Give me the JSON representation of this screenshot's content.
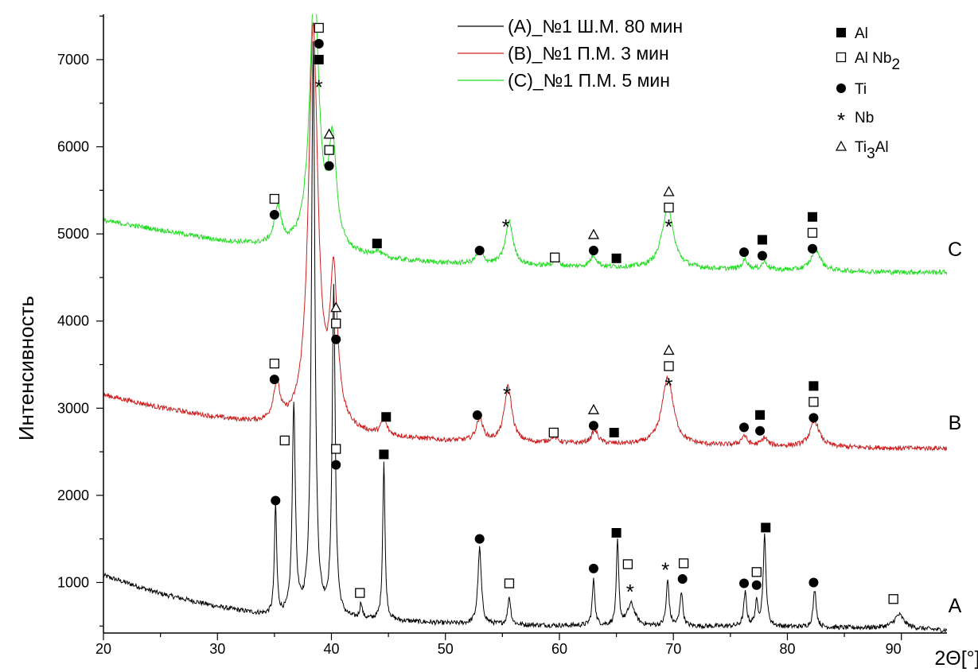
{
  "chart_data": {
    "type": "line",
    "xlabel": "2Θ[°]",
    "ylabel": "Интенсивность",
    "xlim": [
      20,
      94
    ],
    "ylim": [
      420,
      7520
    ],
    "x_ticks": [
      20,
      30,
      40,
      50,
      60,
      70,
      80,
      90
    ],
    "y_ticks": [
      1000,
      2000,
      3000,
      4000,
      5000,
      6000,
      7000
    ],
    "colors": {
      "A": "#000000",
      "B": "#cc1f1f",
      "C": "#22dd22"
    },
    "legend": {
      "placement": "top-center",
      "entries": [
        {
          "id": "C_A",
          "label": "(A)_№1 Ш.М. 80 мин",
          "color": "#000000"
        },
        {
          "id": "C_B",
          "label": "(B)_№1 П.М. 3 мин",
          "color": "#cc1f1f"
        },
        {
          "id": "C_C",
          "label": "(C)_№1 П.М. 5 мин",
          "color": "#22dd22"
        }
      ]
    },
    "phase_legend": {
      "placement": "top-right",
      "entries": [
        {
          "marker": "filled-square",
          "label": "Al"
        },
        {
          "marker": "open-square",
          "label": "Al Nb",
          "sub": "2"
        },
        {
          "marker": "filled-circle",
          "label": "Ti"
        },
        {
          "marker": "asterisk",
          "label": "Nb"
        },
        {
          "marker": "open-triangle",
          "label": "Ti",
          "sub": "3",
          "tail": "Al"
        }
      ]
    },
    "series": [
      {
        "name": "A",
        "end_label": "A",
        "color": "#000000",
        "baseline": [
          [
            20,
            1080
          ],
          [
            25,
            870
          ],
          [
            30,
            720
          ],
          [
            35,
            600
          ],
          [
            40,
            570
          ],
          [
            45,
            560
          ],
          [
            50,
            530
          ],
          [
            55,
            515
          ],
          [
            60,
            505
          ],
          [
            65,
            500
          ],
          [
            70,
            495
          ],
          [
            75,
            495
          ],
          [
            80,
            490
          ],
          [
            85,
            480
          ],
          [
            90,
            480
          ],
          [
            94,
            450
          ]
        ],
        "peaks": [
          {
            "x": 35.1,
            "h": 1280,
            "w": 0.12
          },
          {
            "x": 36.7,
            "h": 2420,
            "w": 0.16
          },
          {
            "x": 38.4,
            "h": 6600,
            "w": 0.18
          },
          {
            "x": 40.2,
            "h": 3760,
            "w": 0.16
          },
          {
            "x": 42.6,
            "h": 180,
            "w": 0.12
          },
          {
            "x": 44.6,
            "h": 1820,
            "w": 0.12
          },
          {
            "x": 53.0,
            "h": 870,
            "w": 0.18
          },
          {
            "x": 55.6,
            "h": 320,
            "w": 0.15
          },
          {
            "x": 63.0,
            "h": 520,
            "w": 0.14
          },
          {
            "x": 65.1,
            "h": 970,
            "w": 0.12
          },
          {
            "x": 66.3,
            "h": 250,
            "w": 0.4
          },
          {
            "x": 69.5,
            "h": 520,
            "w": 0.15
          },
          {
            "x": 70.7,
            "h": 400,
            "w": 0.15
          },
          {
            "x": 76.3,
            "h": 380,
            "w": 0.15
          },
          {
            "x": 77.3,
            "h": 260,
            "w": 0.15
          },
          {
            "x": 78.0,
            "h": 1030,
            "w": 0.15
          },
          {
            "x": 82.4,
            "h": 430,
            "w": 0.16
          },
          {
            "x": 89.8,
            "h": 150,
            "w": 0.5
          }
        ]
      },
      {
        "name": "B",
        "end_label": "B",
        "color": "#cc1f1f",
        "baseline": [
          [
            20,
            3150
          ],
          [
            25,
            3000
          ],
          [
            30,
            2880
          ],
          [
            35,
            2780
          ],
          [
            40,
            2700
          ],
          [
            45,
            2660
          ],
          [
            50,
            2620
          ],
          [
            55,
            2600
          ],
          [
            60,
            2590
          ],
          [
            65,
            2580
          ],
          [
            70,
            2570
          ],
          [
            75,
            2570
          ],
          [
            80,
            2560
          ],
          [
            85,
            2550
          ],
          [
            90,
            2540
          ],
          [
            94,
            2540
          ]
        ],
        "peaks": [
          {
            "x": 35.2,
            "h": 430,
            "w": 0.35
          },
          {
            "x": 38.4,
            "h": 4600,
            "w": 0.5
          },
          {
            "x": 40.2,
            "h": 1700,
            "w": 0.4
          },
          {
            "x": 44.6,
            "h": 170,
            "w": 0.3
          },
          {
            "x": 53.0,
            "h": 260,
            "w": 0.35
          },
          {
            "x": 55.5,
            "h": 640,
            "w": 0.4
          },
          {
            "x": 59.5,
            "h": 70,
            "w": 0.4
          },
          {
            "x": 63.1,
            "h": 150,
            "w": 0.35
          },
          {
            "x": 69.5,
            "h": 780,
            "w": 0.6
          },
          {
            "x": 76.2,
            "h": 110,
            "w": 0.3
          },
          {
            "x": 78.0,
            "h": 90,
            "w": 0.3
          },
          {
            "x": 82.4,
            "h": 290,
            "w": 0.5
          }
        ]
      },
      {
        "name": "C",
        "end_label": "C",
        "color": "#22dd22",
        "baseline": [
          [
            20,
            5150
          ],
          [
            25,
            5040
          ],
          [
            30,
            4920
          ],
          [
            35,
            4840
          ],
          [
            40,
            4760
          ],
          [
            45,
            4700
          ],
          [
            50,
            4660
          ],
          [
            55,
            4640
          ],
          [
            60,
            4620
          ],
          [
            65,
            4610
          ],
          [
            70,
            4600
          ],
          [
            75,
            4590
          ],
          [
            80,
            4580
          ],
          [
            85,
            4570
          ],
          [
            90,
            4560
          ],
          [
            94,
            4560
          ]
        ],
        "peaks": [
          {
            "x": 35.3,
            "h": 440,
            "w": 0.35
          },
          {
            "x": 38.5,
            "h": 3000,
            "w": 0.5
          },
          {
            "x": 40.1,
            "h": 1200,
            "w": 0.4
          },
          {
            "x": 44.0,
            "h": 70,
            "w": 0.4
          },
          {
            "x": 53.0,
            "h": 150,
            "w": 0.35
          },
          {
            "x": 55.6,
            "h": 500,
            "w": 0.4
          },
          {
            "x": 59.7,
            "h": 60,
            "w": 0.4
          },
          {
            "x": 63.0,
            "h": 130,
            "w": 0.35
          },
          {
            "x": 69.5,
            "h": 700,
            "w": 0.6
          },
          {
            "x": 76.3,
            "h": 110,
            "w": 0.3
          },
          {
            "x": 78.0,
            "h": 90,
            "w": 0.3
          },
          {
            "x": 82.5,
            "h": 240,
            "w": 0.5
          }
        ]
      }
    ],
    "annotations": [
      {
        "series": "C",
        "x": 35.0,
        "y": 5220,
        "markers": [
          "filled-circle",
          "open-square"
        ]
      },
      {
        "series": "C",
        "x": 38.9,
        "y": 7000,
        "markers": [
          "filled-square",
          "filled-circle",
          "open-square"
        ]
      },
      {
        "series": "C",
        "x": 38.9,
        "y": 6720,
        "markers": [
          "asterisk"
        ]
      },
      {
        "series": "C",
        "x": 39.8,
        "y": 5780,
        "markers": [
          "filled-circle",
          "open-square",
          "open-triangle"
        ]
      },
      {
        "series": "C",
        "x": 44.0,
        "y": 4890,
        "markers": [
          "filled-square"
        ]
      },
      {
        "series": "C",
        "x": 53.0,
        "y": 4810,
        "markers": [
          "filled-circle"
        ]
      },
      {
        "series": "C",
        "x": 55.3,
        "y": 5120,
        "markers": [
          "asterisk"
        ]
      },
      {
        "series": "C",
        "x": 59.6,
        "y": 4730,
        "markers": [
          "open-square"
        ]
      },
      {
        "series": "C",
        "x": 63.0,
        "y": 4810,
        "markers": [
          "filled-circle",
          "open-triangle"
        ]
      },
      {
        "series": "C",
        "x": 65.0,
        "y": 4720,
        "markers": [
          "filled-square"
        ]
      },
      {
        "series": "C",
        "x": 69.6,
        "y": 5120,
        "markers": [
          "asterisk",
          "open-square",
          "open-triangle"
        ]
      },
      {
        "series": "C",
        "x": 76.2,
        "y": 4790,
        "markers": [
          "filled-circle"
        ]
      },
      {
        "series": "C",
        "x": 77.8,
        "y": 4750,
        "markers": [
          "filled-circle",
          "filled-square"
        ]
      },
      {
        "series": "C",
        "x": 82.2,
        "y": 4830,
        "markers": [
          "filled-circle",
          "open-square",
          "filled-square"
        ]
      },
      {
        "series": "B",
        "x": 35.0,
        "y": 3330,
        "markers": [
          "filled-circle",
          "open-square"
        ]
      },
      {
        "series": "B",
        "x": 40.4,
        "y": 3790,
        "markers": [
          "filled-circle",
          "open-square",
          "open-triangle"
        ]
      },
      {
        "series": "B",
        "x": 44.8,
        "y": 2900,
        "markers": [
          "filled-square"
        ]
      },
      {
        "series": "B",
        "x": 52.8,
        "y": 2920,
        "markers": [
          "filled-circle"
        ]
      },
      {
        "series": "B",
        "x": 55.4,
        "y": 3200,
        "markers": [
          "asterisk"
        ]
      },
      {
        "series": "B",
        "x": 59.5,
        "y": 2720,
        "markers": [
          "open-square"
        ]
      },
      {
        "series": "B",
        "x": 63.0,
        "y": 2800,
        "markers": [
          "filled-circle",
          "open-triangle"
        ]
      },
      {
        "series": "B",
        "x": 64.8,
        "y": 2720,
        "markers": [
          "filled-square"
        ]
      },
      {
        "series": "B",
        "x": 69.6,
        "y": 3300,
        "markers": [
          "asterisk",
          "open-square",
          "open-triangle"
        ]
      },
      {
        "series": "B",
        "x": 76.2,
        "y": 2780,
        "markers": [
          "filled-circle"
        ]
      },
      {
        "series": "B",
        "x": 77.6,
        "y": 2740,
        "markers": [
          "filled-circle",
          "filled-square"
        ]
      },
      {
        "series": "B",
        "x": 82.3,
        "y": 2890,
        "markers": [
          "filled-circle",
          "open-square",
          "filled-square"
        ]
      },
      {
        "series": "A",
        "x": 35.1,
        "y": 1940,
        "markers": [
          "filled-circle"
        ]
      },
      {
        "series": "A",
        "x": 35.9,
        "y": 2630,
        "markers": [
          "open-square"
        ]
      },
      {
        "series": "A",
        "x": 40.4,
        "y": 2350,
        "markers": [
          "filled-circle",
          "open-square"
        ]
      },
      {
        "series": "A",
        "x": 42.5,
        "y": 880,
        "markers": [
          "open-square"
        ]
      },
      {
        "series": "A",
        "x": 44.6,
        "y": 2470,
        "markers": [
          "filled-square"
        ]
      },
      {
        "series": "A",
        "x": 53.0,
        "y": 1500,
        "markers": [
          "filled-circle"
        ]
      },
      {
        "series": "A",
        "x": 55.6,
        "y": 990,
        "markers": [
          "open-square"
        ]
      },
      {
        "series": "A",
        "x": 63.0,
        "y": 1160,
        "markers": [
          "filled-circle"
        ]
      },
      {
        "series": "A",
        "x": 65.0,
        "y": 1570,
        "markers": [
          "filled-square"
        ]
      },
      {
        "series": "A",
        "x": 66.0,
        "y": 1210,
        "markers": [
          "open-square"
        ]
      },
      {
        "series": "A",
        "x": 66.2,
        "y": 930,
        "markers": [
          "asterisk"
        ]
      },
      {
        "series": "A",
        "x": 69.3,
        "y": 1180,
        "markers": [
          "asterisk"
        ]
      },
      {
        "series": "A",
        "x": 70.8,
        "y": 1040,
        "markers": [
          "filled-circle"
        ]
      },
      {
        "series": "A",
        "x": 70.9,
        "y": 1220,
        "markers": [
          "open-square"
        ]
      },
      {
        "series": "A",
        "x": 76.2,
        "y": 990,
        "markers": [
          "filled-circle"
        ]
      },
      {
        "series": "A",
        "x": 77.3,
        "y": 970,
        "markers": [
          "filled-circle"
        ]
      },
      {
        "series": "A",
        "x": 77.3,
        "y": 1120,
        "markers": [
          "open-square"
        ]
      },
      {
        "series": "A",
        "x": 78.1,
        "y": 1630,
        "markers": [
          "filled-square"
        ]
      },
      {
        "series": "A",
        "x": 82.3,
        "y": 1000,
        "markers": [
          "filled-circle"
        ]
      },
      {
        "series": "A",
        "x": 89.3,
        "y": 810,
        "markers": [
          "open-square"
        ]
      }
    ]
  }
}
